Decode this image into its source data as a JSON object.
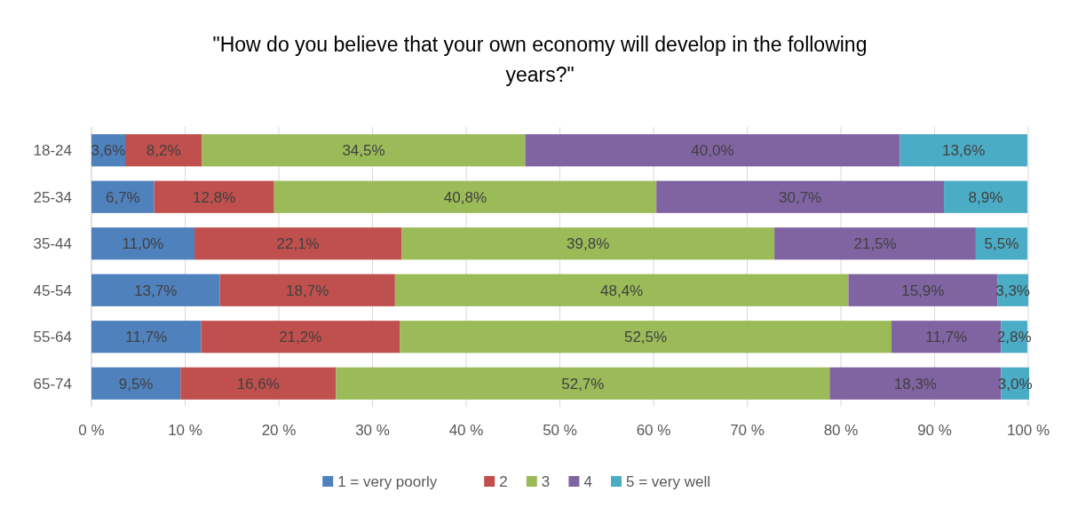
{
  "chart_data": {
    "type": "bar",
    "orientation": "horizontal",
    "stacked": true,
    "title": "\"How do you believe that your own economy will develop in the following years?\"",
    "categories": [
      "18-24",
      "25-34",
      "35-44",
      "45-54",
      "55-64",
      "65-74"
    ],
    "series": [
      {
        "name": "1 = very poorly",
        "color": "#4f81bd",
        "values": [
          3.6,
          6.7,
          11.0,
          13.7,
          11.7,
          9.5
        ],
        "value_labels": [
          "3,6%",
          "6,7%",
          "11,0%",
          "13,7%",
          "11,7%",
          "9,5%"
        ]
      },
      {
        "name": "2",
        "color": "#c0504d",
        "values": [
          8.2,
          12.8,
          22.1,
          18.7,
          21.2,
          16.6
        ],
        "value_labels": [
          "8,2%",
          "12,8%",
          "22,1%",
          "18,7%",
          "21,2%",
          "16,6%"
        ]
      },
      {
        "name": "3",
        "color": "#9bbb59",
        "values": [
          34.5,
          40.8,
          39.8,
          48.4,
          52.5,
          52.7
        ],
        "value_labels": [
          "34,5%",
          "40,8%",
          "39,8%",
          "48,4%",
          "52,5%",
          "52,7%"
        ]
      },
      {
        "name": "4",
        "color": "#8064a2",
        "values": [
          40.0,
          30.7,
          21.5,
          15.9,
          11.7,
          18.3
        ],
        "value_labels": [
          "40,0%",
          "30,7%",
          "21,5%",
          "15,9%",
          "11,7%",
          "18,3%"
        ]
      },
      {
        "name": "5 = very well",
        "color": "#4bacc6",
        "values": [
          13.6,
          8.9,
          5.5,
          3.3,
          2.8,
          3.0
        ],
        "value_labels": [
          "13,6%",
          "8,9%",
          "5,5%",
          "3,3%",
          "2,8%",
          "3,0%"
        ]
      }
    ],
    "xlim": [
      0,
      100
    ],
    "xticks": [
      {
        "value": 0,
        "label": "0 %"
      },
      {
        "value": 10,
        "label": "10 %"
      },
      {
        "value": 20,
        "label": "20 %"
      },
      {
        "value": 30,
        "label": "30 %"
      },
      {
        "value": 40,
        "label": "40 %"
      },
      {
        "value": 50,
        "label": "50 %"
      },
      {
        "value": 60,
        "label": "60 %"
      },
      {
        "value": 70,
        "label": "70 %"
      },
      {
        "value": 80,
        "label": "80 %"
      },
      {
        "value": 90,
        "label": "90 %"
      },
      {
        "value": 100,
        "label": "100 %"
      }
    ],
    "grid": "x",
    "legend": "bottom"
  }
}
